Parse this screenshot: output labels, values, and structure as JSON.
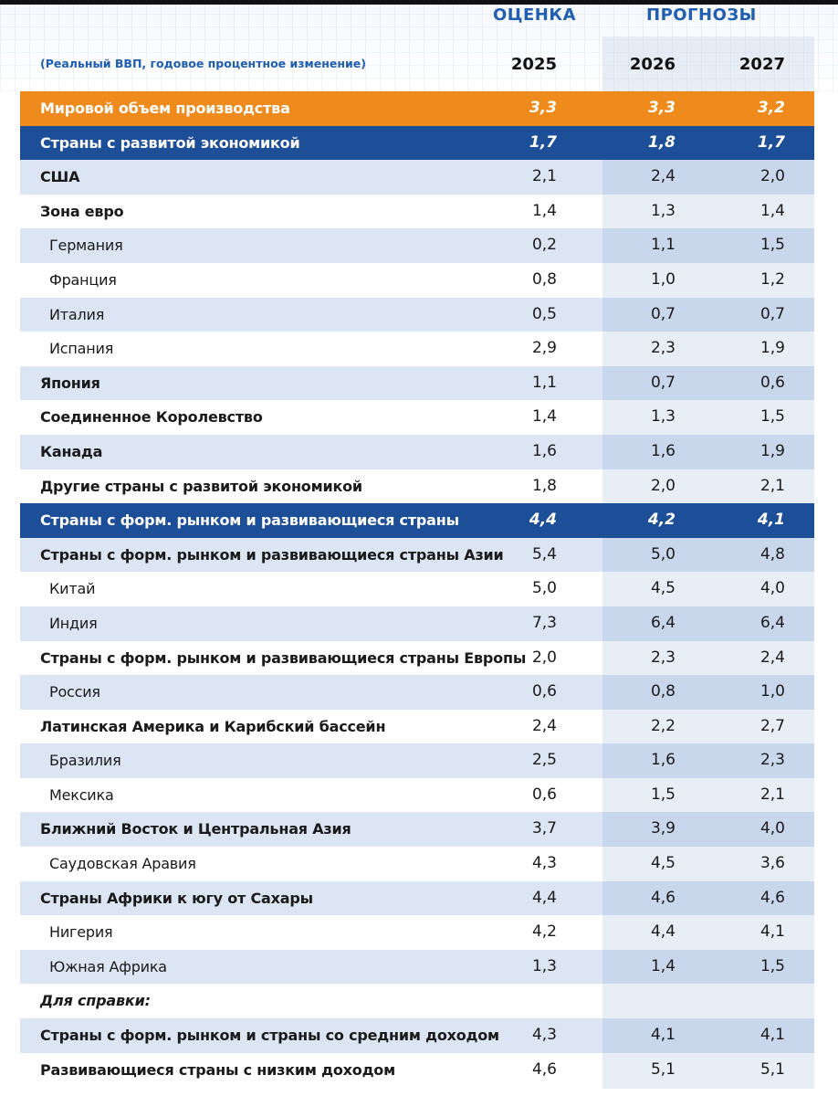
{
  "header": {
    "estimate_label": "ОЦЕНКА",
    "forecast_label": "ПРОГНОЗЫ",
    "subtitle": "(Реальный ВВП, годовое процентное изменение)",
    "years": [
      "2025",
      "2026",
      "2027"
    ]
  },
  "rows": [
    {
      "name": "Мировой объем производства",
      "values": [
        "3,3",
        "3,3",
        "3,2"
      ],
      "style": "world"
    },
    {
      "name": "Страны с развитой экономикой",
      "values": [
        "1,7",
        "1,8",
        "1,7"
      ],
      "style": "blue"
    },
    {
      "name": "США",
      "values": [
        "2,1",
        "2,4",
        "2,0"
      ],
      "style": "alt"
    },
    {
      "name": "Зона евро",
      "values": [
        "1,4",
        "1,3",
        "1,4"
      ],
      "style": "plain"
    },
    {
      "name": "Германия",
      "values": [
        "0,2",
        "1,1",
        "1,5"
      ],
      "style": "alt-ind"
    },
    {
      "name": "Франция",
      "values": [
        "0,8",
        "1,0",
        "1,2"
      ],
      "style": "ind"
    },
    {
      "name": "Италия",
      "values": [
        "0,5",
        "0,7",
        "0,7"
      ],
      "style": "alt-ind"
    },
    {
      "name": "Испания",
      "values": [
        "2,9",
        "2,3",
        "1,9"
      ],
      "style": "ind"
    },
    {
      "name": "Япония",
      "values": [
        "1,1",
        "0,7",
        "0,6"
      ],
      "style": "alt"
    },
    {
      "name": "Соединенное Королевство",
      "values": [
        "1,4",
        "1,3",
        "1,5"
      ],
      "style": "plain"
    },
    {
      "name": "Канада",
      "values": [
        "1,6",
        "1,6",
        "1,9"
      ],
      "style": "alt"
    },
    {
      "name": "Другие страны с развитой экономикой",
      "values": [
        "1,8",
        "2,0",
        "2,1"
      ],
      "style": "plain"
    },
    {
      "name": "Страны с форм. рынком и развивающиеся страны",
      "values": [
        "4,4",
        "4,2",
        "4,1"
      ],
      "style": "blue"
    },
    {
      "name": "Страны с форм. рынком и развивающиеся страны Азии",
      "values": [
        "5,4",
        "5,0",
        "4,8"
      ],
      "style": "alt"
    },
    {
      "name": "Китай",
      "values": [
        "5,0",
        "4,5",
        "4,0"
      ],
      "style": "ind"
    },
    {
      "name": "Индия",
      "values": [
        "7,3",
        "6,4",
        "6,4"
      ],
      "style": "alt-ind"
    },
    {
      "name": "Страны с форм. рынком и развивающиеся страны Европы",
      "values": [
        "2,0",
        "2,3",
        "2,4"
      ],
      "style": "plain"
    },
    {
      "name": "Россия",
      "values": [
        "0,6",
        "0,8",
        "1,0"
      ],
      "style": "alt-ind"
    },
    {
      "name": "Латинская Америка и Карибский бассейн",
      "values": [
        "2,4",
        "2,2",
        "2,7"
      ],
      "style": "plain"
    },
    {
      "name": "Бразилия",
      "values": [
        "2,5",
        "1,6",
        "2,3"
      ],
      "style": "alt-ind"
    },
    {
      "name": "Мексика",
      "values": [
        "0,6",
        "1,5",
        "2,1"
      ],
      "style": "ind"
    },
    {
      "name": "Ближний Восток и Центральная Азия",
      "values": [
        "3,7",
        "3,9",
        "4,0"
      ],
      "style": "alt"
    },
    {
      "name": "Саудовская Аравия",
      "values": [
        "4,3",
        "4,5",
        "3,6"
      ],
      "style": "ind"
    },
    {
      "name": "Страны Африки к югу от Сахары",
      "values": [
        "4,4",
        "4,6",
        "4,6"
      ],
      "style": "alt"
    },
    {
      "name": "Нигерия",
      "values": [
        "4,2",
        "4,4",
        "4,1"
      ],
      "style": "ind"
    },
    {
      "name": "Южная Африка",
      "values": [
        "1,3",
        "1,4",
        "1,5"
      ],
      "style": "alt-ind"
    },
    {
      "name": "Для справки:",
      "values": [
        "",
        "",
        ""
      ],
      "style": "note"
    },
    {
      "name": "Страны с форм. рынком и страны со средним доходом",
      "values": [
        "4,3",
        "4,1",
        "4,1"
      ],
      "style": "alt"
    },
    {
      "name": "Развивающиеся страны с низким доходом",
      "values": [
        "4,6",
        "5,1",
        "5,1"
      ],
      "style": "plain"
    }
  ]
}
